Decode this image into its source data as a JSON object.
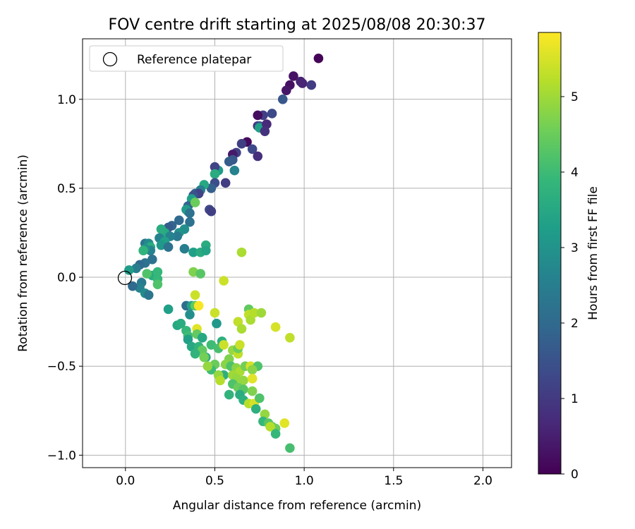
{
  "chart_data": {
    "type": "scatter",
    "title": "FOV centre drift starting at 2025/08/08 20:30:37",
    "xlabel": "Angular distance from reference (arcmin)",
    "ylabel": "Rotation from reference (arcmin)",
    "xlim": [
      -0.24,
      2.16
    ],
    "ylim": [
      -1.07,
      1.34
    ],
    "xticks": [
      0.0,
      0.5,
      1.0,
      1.5,
      2.0
    ],
    "xtick_labels": [
      "0.0",
      "0.5",
      "1.0",
      "1.5",
      "2.0"
    ],
    "yticks": [
      -1.0,
      -0.5,
      0.0,
      0.5,
      1.0
    ],
    "ytick_labels": [
      "−1.0",
      "−0.5",
      "0.0",
      "0.5",
      "1.0"
    ],
    "grid": true,
    "legend": {
      "location": "upper-left",
      "entries": [
        "Reference platepar"
      ]
    },
    "reference_point": {
      "x": 0.0,
      "y": 0.0
    },
    "colorbar": {
      "label": "Hours from first FF file",
      "colormap": "viridis",
      "range": [
        0,
        5.85
      ],
      "ticks": [
        0,
        1,
        2,
        3,
        4,
        5
      ],
      "tick_labels": [
        "0",
        "1",
        "2",
        "3",
        "4",
        "5"
      ]
    },
    "colormap_stops": [
      "#440154",
      "#482878",
      "#3e4989",
      "#31688e",
      "#26828e",
      "#1f9e89",
      "#35b779",
      "#6ece58",
      "#b5de2b",
      "#fde725"
    ],
    "series": [
      {
        "points": [
          [
            1.08,
            1.23,
            0.05
          ],
          [
            0.94,
            1.13,
            0.3
          ],
          [
            0.92,
            1.08,
            0.25
          ],
          [
            0.98,
            1.1,
            0.55
          ],
          [
            0.99,
            1.09,
            0.6
          ],
          [
            0.9,
            1.05,
            0.35
          ],
          [
            1.04,
            1.08,
            1.05
          ],
          [
            0.88,
            1.0,
            1.6
          ],
          [
            0.82,
            0.92,
            1.3
          ],
          [
            0.77,
            0.91,
            1.1
          ],
          [
            0.74,
            0.91,
            0.2
          ],
          [
            0.74,
            0.85,
            0.9
          ],
          [
            0.75,
            0.85,
            1.4
          ],
          [
            0.75,
            0.84,
            3.3
          ],
          [
            0.79,
            0.86,
            0.7
          ],
          [
            0.78,
            0.82,
            0.85
          ],
          [
            0.68,
            0.76,
            0.15
          ],
          [
            0.71,
            0.72,
            1.3
          ],
          [
            0.74,
            0.68,
            0.8
          ],
          [
            0.65,
            0.75,
            1.1
          ],
          [
            0.62,
            0.7,
            1.15
          ],
          [
            0.6,
            0.69,
            0.4
          ],
          [
            0.6,
            0.66,
            1.6
          ],
          [
            0.58,
            0.65,
            1.7
          ],
          [
            0.61,
            0.6,
            2.6
          ],
          [
            0.52,
            0.6,
            3.2
          ],
          [
            0.5,
            0.62,
            1.2
          ],
          [
            0.5,
            0.58,
            3.6
          ],
          [
            0.5,
            0.53,
            1.4
          ],
          [
            0.56,
            0.53,
            1.05
          ],
          [
            0.48,
            0.5,
            1.8
          ],
          [
            0.44,
            0.52,
            3.5
          ],
          [
            0.42,
            0.49,
            2.5
          ],
          [
            0.39,
            0.47,
            1.9
          ],
          [
            0.41,
            0.47,
            1.2
          ],
          [
            0.38,
            0.46,
            1.5
          ],
          [
            0.37,
            0.42,
            2.8
          ],
          [
            0.37,
            0.44,
            3.3
          ],
          [
            0.35,
            0.4,
            1.9
          ],
          [
            0.35,
            0.37,
            2.9
          ],
          [
            0.34,
            0.38,
            3.2
          ],
          [
            0.36,
            0.36,
            2.2
          ],
          [
            0.39,
            0.42,
            4.5
          ],
          [
            0.47,
            0.38,
            1.3
          ],
          [
            0.48,
            0.37,
            1.1
          ],
          [
            0.3,
            0.32,
            2.0
          ],
          [
            0.36,
            0.31,
            2.2
          ],
          [
            0.33,
            0.27,
            2.9
          ],
          [
            0.26,
            0.29,
            1.9
          ],
          [
            0.24,
            0.28,
            1.7
          ],
          [
            0.3,
            0.25,
            3.0
          ],
          [
            0.29,
            0.23,
            2.4
          ],
          [
            0.22,
            0.25,
            3.5
          ],
          [
            0.2,
            0.27,
            3.6
          ],
          [
            0.25,
            0.23,
            2.6
          ],
          [
            0.19,
            0.22,
            2.6
          ],
          [
            0.22,
            0.2,
            3.3
          ],
          [
            0.2,
            0.18,
            3.1
          ],
          [
            0.11,
            0.19,
            2.3
          ],
          [
            0.13,
            0.19,
            2.8
          ],
          [
            0.14,
            0.17,
            3.6
          ],
          [
            0.14,
            0.15,
            2.6
          ],
          [
            0.11,
            0.16,
            3.0
          ],
          [
            0.1,
            0.15,
            3.8
          ],
          [
            0.24,
            0.17,
            2.2
          ],
          [
            0.33,
            0.16,
            2.5
          ],
          [
            0.38,
            0.14,
            3.3
          ],
          [
            0.42,
            0.14,
            3.6
          ],
          [
            0.45,
            0.18,
            3.6
          ],
          [
            0.45,
            0.15,
            3.4
          ],
          [
            0.65,
            0.14,
            5.1
          ],
          [
            0.15,
            0.1,
            2.2
          ],
          [
            0.11,
            0.08,
            2.2
          ],
          [
            0.08,
            0.07,
            2.0
          ],
          [
            0.06,
            0.05,
            2.5
          ],
          [
            0.02,
            0.04,
            3.2
          ],
          [
            0.15,
            0.01,
            3.6
          ],
          [
            0.18,
            0.03,
            3.9
          ],
          [
            0.12,
            0.02,
            4.2
          ],
          [
            0.38,
            0.03,
            4.7
          ],
          [
            0.42,
            0.02,
            4.3
          ],
          [
            0.18,
            -0.01,
            3.9
          ],
          [
            0.18,
            -0.04,
            4.2
          ],
          [
            0.09,
            -0.03,
            2.4
          ],
          [
            0.08,
            -0.06,
            2.6
          ],
          [
            0.04,
            -0.05,
            2.0
          ],
          [
            0.11,
            -0.09,
            2.8
          ],
          [
            0.13,
            -0.1,
            2.3
          ],
          [
            0.55,
            -0.02,
            5.4
          ],
          [
            0.24,
            -0.18,
            3.3
          ],
          [
            0.34,
            -0.16,
            2.1
          ],
          [
            0.37,
            -0.16,
            3.4
          ],
          [
            0.39,
            -0.16,
            4.4
          ],
          [
            0.41,
            -0.16,
            5.8
          ],
          [
            0.39,
            -0.1,
            5.4
          ],
          [
            0.36,
            -0.21,
            2.9
          ],
          [
            0.5,
            -0.2,
            5.4
          ],
          [
            0.51,
            -0.26,
            3.1
          ],
          [
            0.69,
            -0.18,
            4.4
          ],
          [
            0.69,
            -0.21,
            5.3
          ],
          [
            0.7,
            -0.24,
            5.1
          ],
          [
            0.72,
            -0.2,
            5.2
          ],
          [
            0.76,
            -0.2,
            5.0
          ],
          [
            0.63,
            -0.25,
            5.3
          ],
          [
            0.65,
            -0.29,
            5.1
          ],
          [
            0.84,
            -0.28,
            5.5
          ],
          [
            0.92,
            -0.34,
            5.3
          ],
          [
            0.29,
            -0.27,
            3.5
          ],
          [
            0.31,
            -0.26,
            3.6
          ],
          [
            0.34,
            -0.3,
            3.9
          ],
          [
            0.35,
            -0.33,
            4.0
          ],
          [
            0.4,
            -0.29,
            5.6
          ],
          [
            0.4,
            -0.32,
            4.4
          ],
          [
            0.43,
            -0.34,
            3.5
          ],
          [
            0.35,
            -0.35,
            3.3
          ],
          [
            0.37,
            -0.39,
            3.5
          ],
          [
            0.41,
            -0.39,
            3.8
          ],
          [
            0.43,
            -0.41,
            4.4
          ],
          [
            0.45,
            -0.45,
            3.6
          ],
          [
            0.48,
            -0.38,
            4.0
          ],
          [
            0.52,
            -0.4,
            4.1
          ],
          [
            0.54,
            -0.36,
            3.7
          ],
          [
            0.55,
            -0.38,
            5.4
          ],
          [
            0.6,
            -0.41,
            4.9
          ],
          [
            0.63,
            -0.43,
            5.3
          ],
          [
            0.63,
            -0.4,
            4.5
          ],
          [
            0.64,
            -0.38,
            5.4
          ],
          [
            0.58,
            -0.46,
            4.7
          ],
          [
            0.56,
            -0.49,
            4.8
          ],
          [
            0.5,
            -0.49,
            4.5
          ],
          [
            0.48,
            -0.52,
            4.0
          ],
          [
            0.44,
            -0.45,
            4.6
          ],
          [
            0.46,
            -0.5,
            4.9
          ],
          [
            0.39,
            -0.43,
            3.8
          ],
          [
            0.59,
            -0.5,
            4.2
          ],
          [
            0.62,
            -0.51,
            4.8
          ],
          [
            0.64,
            -0.53,
            5.1
          ],
          [
            0.67,
            -0.5,
            4.6
          ],
          [
            0.7,
            -0.5,
            5.5
          ],
          [
            0.74,
            -0.5,
            4.2
          ],
          [
            0.71,
            -0.52,
            4.8
          ],
          [
            0.55,
            -0.55,
            3.7
          ],
          [
            0.6,
            -0.55,
            5.0
          ],
          [
            0.62,
            -0.57,
            4.9
          ],
          [
            0.66,
            -0.58,
            4.9
          ],
          [
            0.71,
            -0.57,
            5.6
          ],
          [
            0.6,
            -0.6,
            4.2
          ],
          [
            0.63,
            -0.62,
            4.5
          ],
          [
            0.66,
            -0.63,
            4.3
          ],
          [
            0.71,
            -0.64,
            4.7
          ],
          [
            0.58,
            -0.66,
            3.8
          ],
          [
            0.64,
            -0.66,
            3.6
          ],
          [
            0.66,
            -0.69,
            3.7
          ],
          [
            0.69,
            -0.71,
            5.2
          ],
          [
            0.72,
            -0.71,
            5.5
          ],
          [
            0.75,
            -0.68,
            4.2
          ],
          [
            0.73,
            -0.74,
            3.7
          ],
          [
            0.78,
            -0.77,
            4.9
          ],
          [
            0.77,
            -0.81,
            3.9
          ],
          [
            0.8,
            -0.82,
            4.3
          ],
          [
            0.82,
            -0.84,
            4.3
          ],
          [
            0.84,
            -0.85,
            4.5
          ],
          [
            0.81,
            -0.84,
            5.2
          ],
          [
            0.84,
            -0.88,
            3.9
          ],
          [
            0.89,
            -0.82,
            5.6
          ],
          [
            0.92,
            -0.96,
            4.1
          ],
          [
            0.52,
            -0.55,
            4.9
          ],
          [
            0.53,
            -0.58,
            5.2
          ]
        ]
      }
    ]
  }
}
